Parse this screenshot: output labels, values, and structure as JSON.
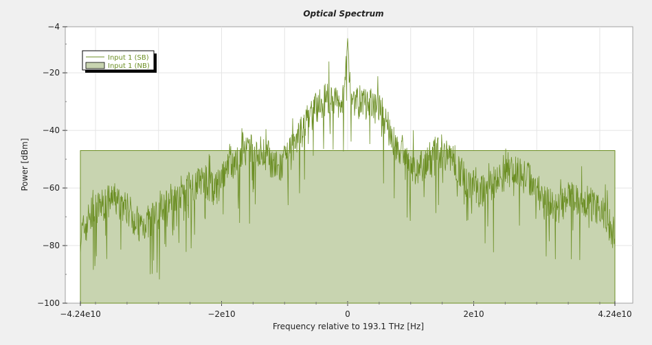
{
  "chart_data": {
    "type": "area",
    "title": "Optical Spectrum",
    "xlabel": "Frequency relative to 193.1 THz [Hz]",
    "ylabel": "Power [dBm]",
    "xlim": [
      -42400000000,
      42400000000
    ],
    "ylim": [
      -100,
      -4
    ],
    "grid": true,
    "legend_placement": "top-left",
    "x_ticks": [
      {
        "value": -42400000000,
        "label": "−4.24e10"
      },
      {
        "value": -20000000000,
        "label": "−2e10"
      },
      {
        "value": 0,
        "label": "0"
      },
      {
        "value": 20000000000,
        "label": "2e10"
      },
      {
        "value": 42400000000,
        "label": "4.24e10"
      }
    ],
    "y_ticks": [
      {
        "value": -4,
        "label": "−4"
      },
      {
        "value": -20,
        "label": "−20"
      },
      {
        "value": -40,
        "label": "−40"
      },
      {
        "value": -60,
        "label": "−60"
      },
      {
        "value": -80,
        "label": "−80"
      },
      {
        "value": -100,
        "label": "−100"
      }
    ],
    "series": [
      {
        "name": "Input 1  (SB)",
        "kind": "line",
        "color": "#6b8e23",
        "x": [
          -42400000000,
          -41000000000,
          -39000000000,
          -37000000000,
          -35000000000,
          -33000000000,
          -31000000000,
          -29000000000,
          -27000000000,
          -25000000000,
          -23000000000,
          -21000000000,
          -19000000000,
          -17000000000,
          -15000000000,
          -13000000000,
          -11000000000,
          -9000000000,
          -7000000000,
          -5000000000,
          -3000000000,
          -1500000000,
          -500000000,
          0,
          500000000,
          1500000000,
          3000000000,
          5000000000,
          7000000000,
          9000000000,
          11000000000,
          13000000000,
          15000000000,
          17000000000,
          19000000000,
          21000000000,
          23000000000,
          25000000000,
          27000000000,
          29000000000,
          31000000000,
          33000000000,
          35000000000,
          37000000000,
          39000000000,
          41000000000,
          42400000000
        ],
        "values": [
          -77,
          -70,
          -66,
          -64,
          -67,
          -73,
          -71,
          -66,
          -62,
          -60,
          -57,
          -61,
          -54,
          -49,
          -47,
          -48,
          -54,
          -48,
          -39,
          -32,
          -29,
          -31,
          -27,
          -8,
          -28,
          -30,
          -31,
          -32,
          -42,
          -51,
          -54,
          -50,
          -47,
          -51,
          -58,
          -61,
          -59,
          -55,
          -53,
          -57,
          -65,
          -67,
          -64,
          -63,
          -66,
          -70,
          -77
        ]
      },
      {
        "name": "Input 1  (NB)",
        "kind": "area",
        "color": "#6b8e23",
        "fill": "#c8d4b0",
        "x": [
          -42400000000,
          42400000000
        ],
        "values": [
          -47,
          -47
        ]
      }
    ]
  }
}
